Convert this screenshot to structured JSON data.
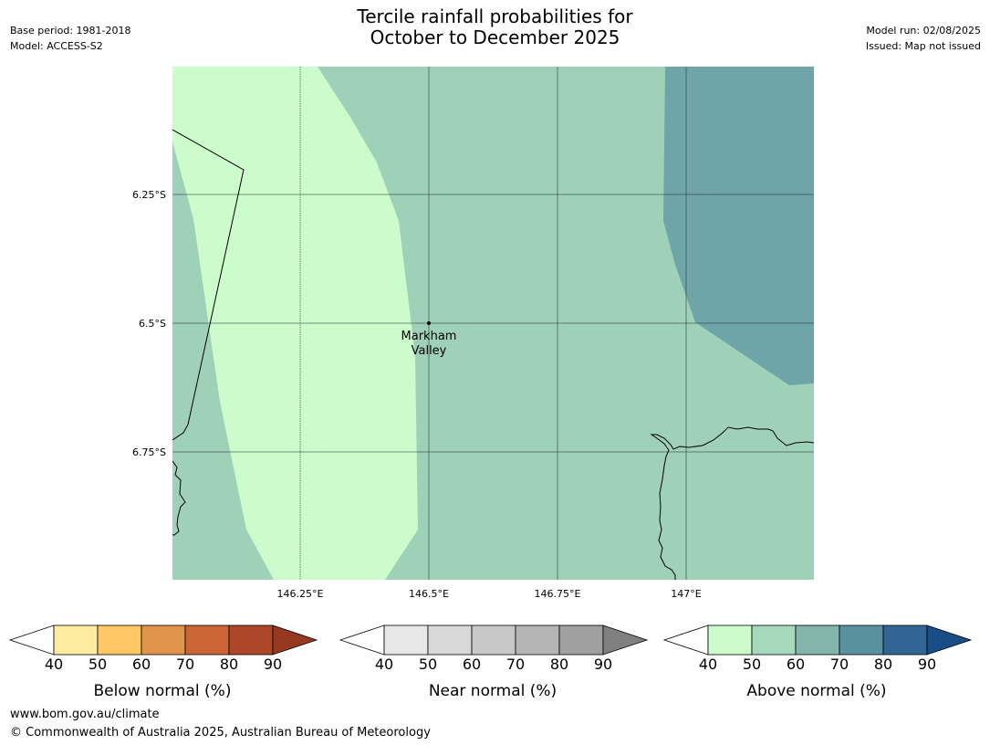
{
  "header": {
    "base_period": "Base period: 1981-2018",
    "model": "Model: ACCESS-S2",
    "title_line1": "Tercile rainfall probabilities for",
    "title_line2": "October to December 2025",
    "model_run": "Model run: 02/08/2025",
    "issued": "Issued: Map not issued"
  },
  "map": {
    "lat_labels": [
      "6.25°S",
      "6.5°S",
      "6.75°S"
    ],
    "lon_labels": [
      "146.25°E",
      "146.5°E",
      "146.75°E",
      "147°E"
    ],
    "place": {
      "line1": "Markham",
      "line2": "Valley"
    },
    "colors": {
      "above_40_50": "#ccfccc",
      "above_50_60": "#9fd1b9",
      "above_70_80": "#6fa5a8"
    }
  },
  "colorbars": [
    {
      "label": "Below normal (%)",
      "ticks": [
        "40",
        "50",
        "60",
        "70",
        "80",
        "90"
      ],
      "colors": [
        "#feeca0",
        "#fec965",
        "#e0934a",
        "#cc6535",
        "#ac4729",
        "#973921"
      ]
    },
    {
      "label": "Near normal (%)",
      "ticks": [
        "40",
        "50",
        "60",
        "70",
        "80",
        "90"
      ],
      "colors": [
        "#e7e7e7",
        "#d8d8d8",
        "#c8c8c8",
        "#b5b5b5",
        "#a0a0a0",
        "#808080"
      ]
    },
    {
      "label": "Above normal (%)",
      "ticks": [
        "40",
        "50",
        "60",
        "70",
        "80",
        "90"
      ],
      "colors": [
        "#ccfccc",
        "#a6d8bb",
        "#82b5ab",
        "#5a91a0",
        "#306594",
        "#184e87"
      ]
    }
  ],
  "footer": {
    "url": "www.bom.gov.au/climate",
    "copyright": "© Commonwealth of Australia 2025, Australian Bureau of Meteorology"
  }
}
